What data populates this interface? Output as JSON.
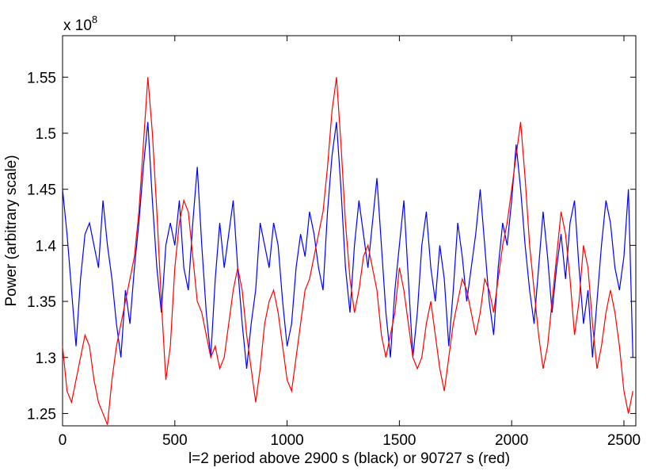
{
  "chart_data": {
    "type": "line",
    "x_label": "l=2 period above 2900 s (black) or 90727 s (red)",
    "y_label": "Power (arbitrary scale)",
    "y_multiplier": {
      "text": "x 10",
      "exponent": "8"
    },
    "xlim": [
      0,
      2553
    ],
    "ylim": [
      1.239,
      1.587
    ],
    "xticks": [
      0,
      500,
      1000,
      1500,
      2000,
      2500
    ],
    "yticks": [
      1.25,
      1.3,
      1.35,
      1.4,
      1.45,
      1.5,
      1.55
    ],
    "grid": false,
    "x": [
      0,
      20,
      40,
      60,
      80,
      100,
      120,
      140,
      160,
      180,
      200,
      220,
      240,
      260,
      280,
      300,
      320,
      340,
      360,
      380,
      400,
      420,
      440,
      460,
      480,
      500,
      520,
      540,
      560,
      580,
      600,
      620,
      640,
      660,
      680,
      700,
      720,
      740,
      760,
      780,
      800,
      820,
      840,
      860,
      880,
      900,
      920,
      940,
      960,
      980,
      1000,
      1020,
      1040,
      1060,
      1080,
      1100,
      1120,
      1140,
      1160,
      1180,
      1200,
      1220,
      1240,
      1260,
      1280,
      1300,
      1320,
      1340,
      1360,
      1380,
      1400,
      1420,
      1440,
      1460,
      1480,
      1500,
      1520,
      1540,
      1560,
      1580,
      1600,
      1620,
      1640,
      1660,
      1680,
      1700,
      1720,
      1740,
      1760,
      1780,
      1800,
      1820,
      1840,
      1860,
      1880,
      1900,
      1920,
      1940,
      1960,
      1980,
      2000,
      2020,
      2040,
      2060,
      2080,
      2100,
      2120,
      2140,
      2160,
      2180,
      2200,
      2220,
      2240,
      2260,
      2280,
      2300,
      2320,
      2340,
      2360,
      2380,
      2400,
      2420,
      2440,
      2460,
      2480,
      2500,
      2520,
      2540
    ],
    "series": [
      {
        "color": "#0000ff",
        "values": [
          1.45,
          1.41,
          1.36,
          1.31,
          1.37,
          1.41,
          1.42,
          1.4,
          1.38,
          1.44,
          1.4,
          1.37,
          1.33,
          1.3,
          1.36,
          1.33,
          1.38,
          1.42,
          1.47,
          1.51,
          1.44,
          1.38,
          1.34,
          1.4,
          1.42,
          1.4,
          1.44,
          1.38,
          1.36,
          1.42,
          1.47,
          1.4,
          1.34,
          1.3,
          1.37,
          1.42,
          1.38,
          1.41,
          1.44,
          1.38,
          1.33,
          1.29,
          1.33,
          1.36,
          1.42,
          1.4,
          1.38,
          1.42,
          1.4,
          1.35,
          1.31,
          1.33,
          1.38,
          1.41,
          1.39,
          1.43,
          1.41,
          1.38,
          1.36,
          1.43,
          1.48,
          1.51,
          1.45,
          1.38,
          1.34,
          1.4,
          1.44,
          1.41,
          1.38,
          1.42,
          1.46,
          1.4,
          1.34,
          1.3,
          1.36,
          1.4,
          1.44,
          1.37,
          1.3,
          1.34,
          1.4,
          1.43,
          1.38,
          1.35,
          1.4,
          1.37,
          1.31,
          1.36,
          1.42,
          1.39,
          1.35,
          1.38,
          1.41,
          1.45,
          1.4,
          1.35,
          1.32,
          1.38,
          1.42,
          1.4,
          1.44,
          1.49,
          1.45,
          1.4,
          1.36,
          1.33,
          1.38,
          1.43,
          1.39,
          1.34,
          1.38,
          1.41,
          1.37,
          1.42,
          1.44,
          1.38,
          1.33,
          1.36,
          1.3,
          1.35,
          1.4,
          1.44,
          1.42,
          1.38,
          1.36,
          1.39,
          1.45,
          1.3
        ]
      },
      {
        "color": "#ff0000",
        "values": [
          1.31,
          1.27,
          1.26,
          1.28,
          1.3,
          1.32,
          1.31,
          1.28,
          1.26,
          1.25,
          1.24,
          1.28,
          1.31,
          1.33,
          1.35,
          1.37,
          1.39,
          1.43,
          1.49,
          1.55,
          1.5,
          1.43,
          1.35,
          1.28,
          1.31,
          1.38,
          1.42,
          1.44,
          1.43,
          1.39,
          1.35,
          1.34,
          1.32,
          1.3,
          1.31,
          1.29,
          1.3,
          1.33,
          1.36,
          1.38,
          1.36,
          1.32,
          1.29,
          1.26,
          1.29,
          1.33,
          1.35,
          1.36,
          1.34,
          1.31,
          1.28,
          1.27,
          1.3,
          1.33,
          1.36,
          1.37,
          1.39,
          1.41,
          1.43,
          1.47,
          1.52,
          1.55,
          1.49,
          1.42,
          1.37,
          1.34,
          1.36,
          1.39,
          1.4,
          1.38,
          1.36,
          1.32,
          1.3,
          1.32,
          1.34,
          1.38,
          1.36,
          1.33,
          1.3,
          1.29,
          1.3,
          1.33,
          1.35,
          1.32,
          1.29,
          1.27,
          1.3,
          1.33,
          1.35,
          1.37,
          1.36,
          1.34,
          1.32,
          1.34,
          1.37,
          1.36,
          1.34,
          1.37,
          1.4,
          1.42,
          1.45,
          1.48,
          1.51,
          1.46,
          1.4,
          1.36,
          1.32,
          1.29,
          1.31,
          1.35,
          1.39,
          1.43,
          1.41,
          1.37,
          1.32,
          1.35,
          1.4,
          1.38,
          1.33,
          1.29,
          1.31,
          1.34,
          1.36,
          1.34,
          1.31,
          1.27,
          1.25,
          1.27
        ]
      }
    ]
  }
}
